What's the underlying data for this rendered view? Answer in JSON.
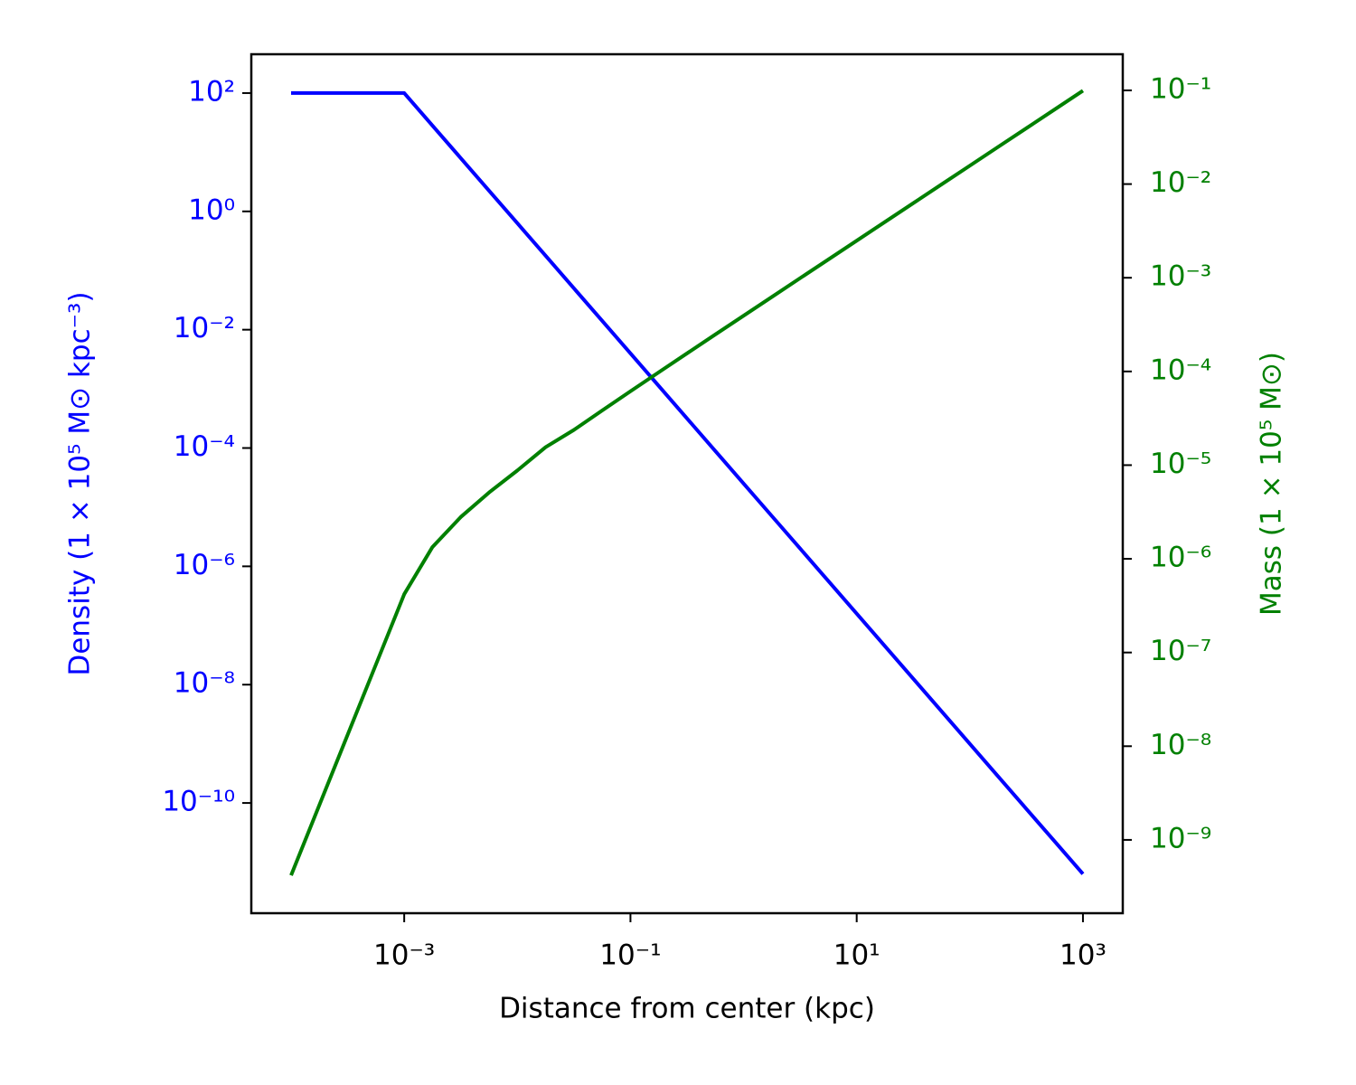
{
  "chart_data": {
    "type": "line",
    "xlabel": "Distance from center (kpc)",
    "ylabel": "Density (1 × 10⁵ M⊙ kpc⁻³)",
    "y2label": "Mass (1 × 10⁵ M⊙)",
    "xscale": "log",
    "yscale": "log",
    "y2scale": "log",
    "x": [
      0.0001,
      0.0001778,
      0.0003162,
      0.0005623,
      0.001,
      0.001778,
      0.003162,
      0.005623,
      0.01,
      0.01778,
      0.03162,
      0.05623,
      0.1,
      0.1778,
      0.3162,
      0.5623,
      1,
      1.778,
      3.162,
      5.623,
      10,
      17.78,
      31.62,
      56.23,
      100,
      177.8,
      316.2,
      562.3,
      1000
    ],
    "series": [
      {
        "color": "#0000ff",
        "axis": "y",
        "values": [
          100,
          100,
          100,
          100,
          100,
          28.18,
          7.943,
          2.239,
          0.631,
          0.1778,
          0.05012,
          0.01413,
          0.003981,
          0.001122,
          0.0003162,
          8.913e-05,
          2.512e-05,
          7.079e-06,
          1.995e-06,
          5.623e-07,
          1.585e-07,
          4.467e-08,
          1.259e-08,
          3.548e-09,
          1e-09,
          2.818e-10,
          7.943e-11,
          2.239e-11,
          6.31e-12
        ]
      },
      {
        "color": "#008000",
        "axis": "y2",
        "values": [
          4.189e-10,
          2.355e-09,
          1.325e-08,
          7.448e-08,
          4.189e-07,
          1.338e-06,
          2.794e-06,
          5.102e-06,
          8.76e-06,
          1.556e-05,
          2.375e-05,
          3.831e-05,
          6.139e-05,
          9.797e-05,
          0.0001559,
          0.0002479,
          0.0003934,
          0.0006243,
          0.0009901,
          0.00157,
          0.002489,
          0.003945,
          0.006253,
          0.009912,
          0.01571,
          0.0249,
          0.03946,
          0.06254,
          0.09912
        ]
      }
    ],
    "xlim": [
      4.45e-05,
      2249
    ],
    "ylim": [
      1.37e-12,
      453
    ],
    "y2lim": [
      1.65e-10,
      0.243
    ],
    "xticks": [
      {
        "value": 0.001,
        "label": "10⁻³"
      },
      {
        "value": 0.1,
        "label": "10⁻¹"
      },
      {
        "value": 10,
        "label": "10¹"
      },
      {
        "value": 1000,
        "label": "10³"
      }
    ],
    "yticks": [
      {
        "value": 100,
        "label": "10²"
      },
      {
        "value": 1,
        "label": "10⁰"
      },
      {
        "value": 0.01,
        "label": "10⁻²"
      },
      {
        "value": 0.0001,
        "label": "10⁻⁴"
      },
      {
        "value": 1e-06,
        "label": "10⁻⁶"
      },
      {
        "value": 1e-08,
        "label": "10⁻⁸"
      },
      {
        "value": 1e-10,
        "label": "10⁻¹⁰"
      }
    ],
    "y2ticks": [
      {
        "value": 0.1,
        "label": "10⁻¹"
      },
      {
        "value": 0.01,
        "label": "10⁻²"
      },
      {
        "value": 0.001,
        "label": "10⁻³"
      },
      {
        "value": 0.0001,
        "label": "10⁻⁴"
      },
      {
        "value": 1e-05,
        "label": "10⁻⁵"
      },
      {
        "value": 1e-06,
        "label": "10⁻⁶"
      },
      {
        "value": 1e-07,
        "label": "10⁻⁷"
      },
      {
        "value": 1e-08,
        "label": "10⁻⁸"
      },
      {
        "value": 1e-09,
        "label": "10⁻⁹"
      }
    ],
    "grid": false
  }
}
